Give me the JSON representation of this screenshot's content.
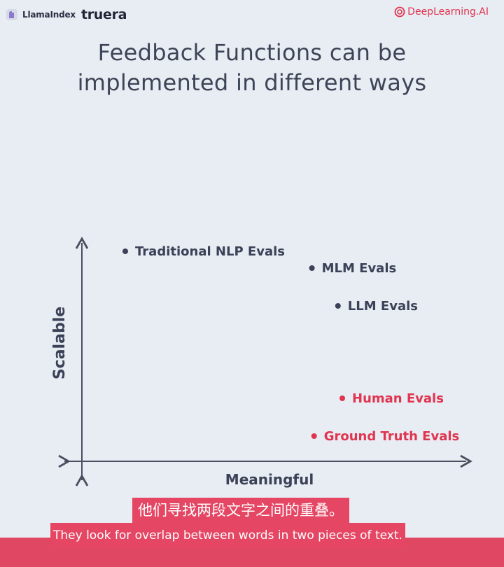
{
  "header": {
    "llama_logo_text": "LlamaIndex",
    "truera_logo_text": "truera",
    "deeplearning_logo_text": "DeepLearning.AI"
  },
  "title": {
    "line1": "Feedback Functions can be",
    "line2": "implemented in different ways"
  },
  "axes": {
    "y_label": "Scalable",
    "x_label": "Meaningful"
  },
  "colors": {
    "background": "#e8ecf3",
    "text_dark": "#3d4456",
    "accent_red": "#e0344f",
    "axis": "#4a4f60",
    "subtitle_bg": "#e44663"
  },
  "chart_data": {
    "type": "scatter",
    "title": "Feedback Functions can be implemented in different ways",
    "xlabel": "Meaningful",
    "ylabel": "Scalable",
    "points": [
      {
        "label": "Traditional NLP Evals",
        "meaningful": 1,
        "scalable": 5,
        "color": "#3b4157"
      },
      {
        "label": "MLM Evals",
        "meaningful": 5.3,
        "scalable": 4.6,
        "color": "#3b4157"
      },
      {
        "label": "LLM Evals",
        "meaningful": 5.9,
        "scalable": 3.7,
        "color": "#3b4157"
      },
      {
        "label": "Human Evals",
        "meaningful": 6,
        "scalable": 1.5,
        "color": "#e0344f"
      },
      {
        "label": "Ground Truth Evals",
        "meaningful": 5.35,
        "scalable": 0.6,
        "color": "#e0344f"
      }
    ]
  },
  "subtitles": {
    "zh": "他们寻找两段文字之间的重叠。",
    "en": "They look for overlap between words in two pieces of text."
  }
}
